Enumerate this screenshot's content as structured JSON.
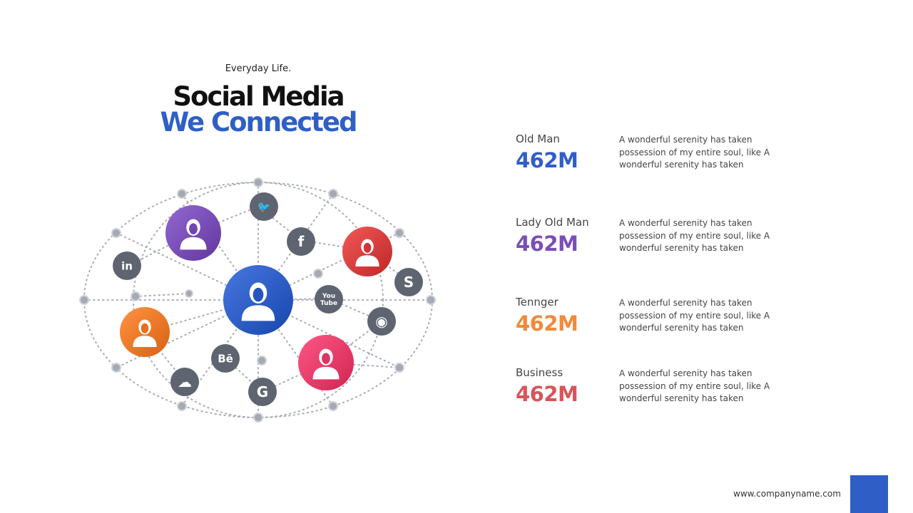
{
  "header": {
    "eyebrow": "Everyday Life.",
    "title_line1": "Social Media",
    "title_line2": "We Connected"
  },
  "network": {
    "people": [
      {
        "icon": "bald-man-icon",
        "color": "#2f5fc6",
        "name": "old-man"
      },
      {
        "icon": "woman-icon",
        "color": "#7a4fb8",
        "name": "lady"
      },
      {
        "icon": "man-icon",
        "color": "#d8403f",
        "name": "man"
      },
      {
        "icon": "girl-icon",
        "color": "#f07a2a",
        "name": "teen"
      },
      {
        "icon": "woman-icon",
        "color": "#e83e6c",
        "name": "business"
      }
    ],
    "socials": [
      {
        "icon": "twitter-icon",
        "glyph": "🐦"
      },
      {
        "icon": "facebook-icon",
        "glyph": "f"
      },
      {
        "icon": "linkedin-icon",
        "glyph": "in"
      },
      {
        "icon": "skype-icon",
        "glyph": "S"
      },
      {
        "icon": "youtube-icon",
        "glyph": "You\nTube"
      },
      {
        "icon": "instagram-icon",
        "glyph": "◉"
      },
      {
        "icon": "behance-icon",
        "glyph": "Bē"
      },
      {
        "icon": "soundcloud-icon",
        "glyph": "☁"
      },
      {
        "icon": "google-icon",
        "glyph": "G"
      }
    ]
  },
  "stats": [
    {
      "label": "Old Man",
      "value": "462M",
      "color": "#2f5fc6",
      "desc": "A wonderful serenity has taken possession of my entire soul, like A wonderful serenity has taken"
    },
    {
      "label": "Lady Old Man",
      "value": "462M",
      "color": "#7a4fb8",
      "desc": "A wonderful serenity has taken possession of my entire soul, like A wonderful serenity has taken"
    },
    {
      "label": "Tennger",
      "value": "462M",
      "color": "#f08a3c",
      "desc": "A wonderful serenity has taken possession of my entire soul, like A wonderful serenity has taken"
    },
    {
      "label": "Business",
      "value": "462M",
      "color": "#d9545a",
      "desc": "A wonderful serenity has taken possession of my entire soul, like A wonderful serenity has taken"
    }
  ],
  "footer": {
    "website": "www.companyname.com",
    "accent": "#2f5fc6"
  }
}
